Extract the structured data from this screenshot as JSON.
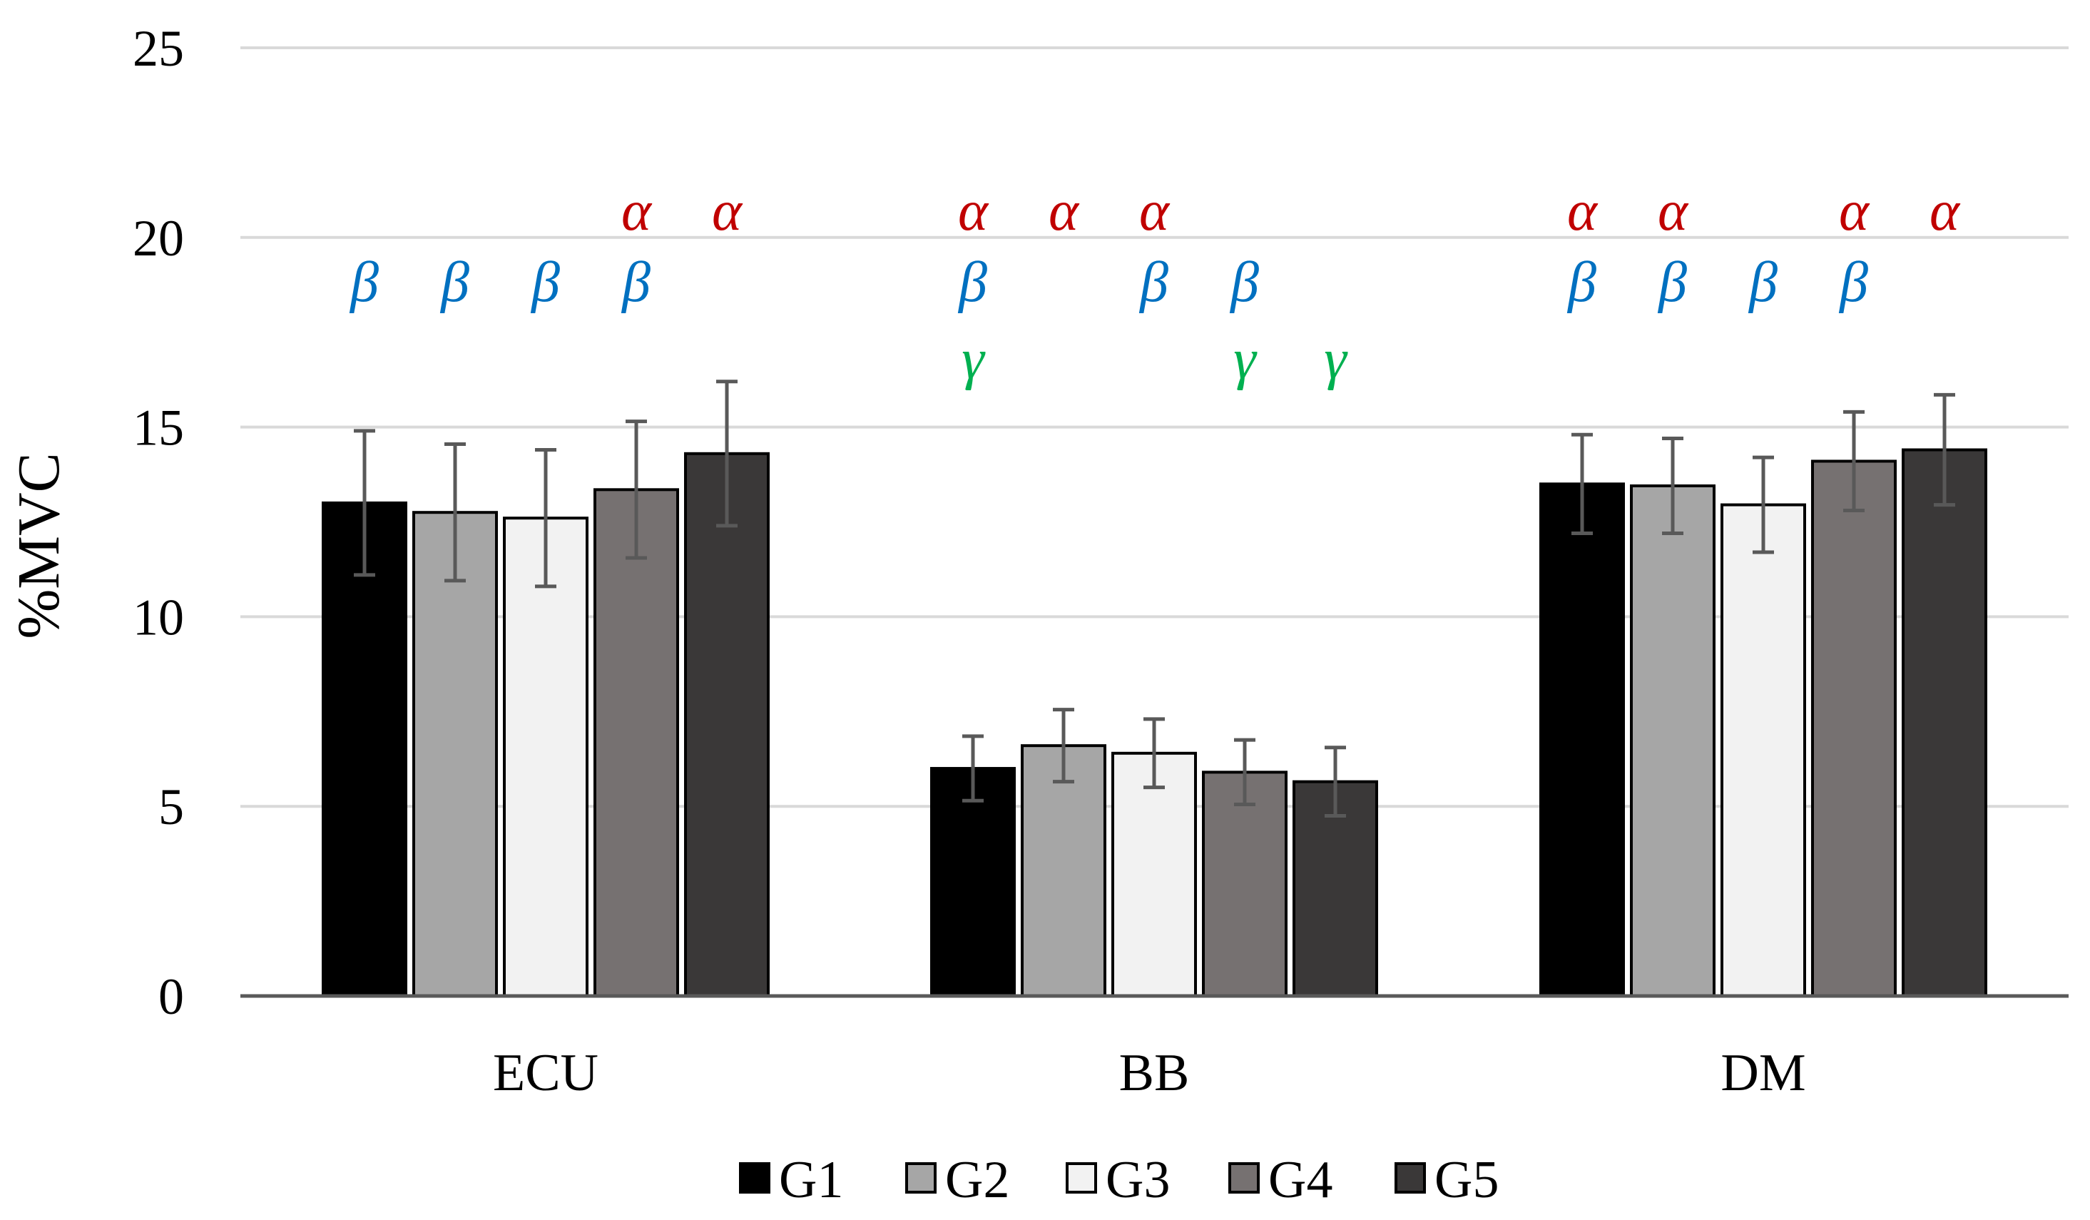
{
  "chart_data": {
    "type": "bar",
    "title": "",
    "xlabel": "",
    "ylabel": "%MVC",
    "ylim": [
      0,
      25
    ],
    "yticks": [
      0,
      5,
      10,
      15,
      20,
      25
    ],
    "grid": true,
    "legend_position": "bottom",
    "categories": [
      "ECU",
      "BB",
      "DM"
    ],
    "series": [
      {
        "name": "G1",
        "color": "#000000",
        "values": [
          13.0,
          6.0,
          13.5
        ],
        "errors": [
          1.9,
          0.85,
          1.3
        ]
      },
      {
        "name": "G2",
        "color": "#a6a6a6",
        "values": [
          12.75,
          6.6,
          13.45
        ],
        "errors": [
          1.8,
          0.95,
          1.25
        ]
      },
      {
        "name": "G3",
        "color": "#f2f2f2",
        "values": [
          12.6,
          6.4,
          12.95
        ],
        "errors": [
          1.8,
          0.9,
          1.25
        ]
      },
      {
        "name": "G4",
        "color": "#767171",
        "values": [
          13.35,
          5.9,
          14.1
        ],
        "errors": [
          1.8,
          0.85,
          1.3
        ]
      },
      {
        "name": "G5",
        "color": "#3a3838",
        "values": [
          14.3,
          5.65,
          14.4
        ],
        "errors": [
          1.9,
          0.9,
          1.45
        ]
      }
    ],
    "significance": {
      "symbols": [
        {
          "name": "alpha",
          "glyph": "α",
          "color": "#c00000"
        },
        {
          "name": "beta",
          "glyph": "β",
          "color": "#0070c0"
        },
        {
          "name": "gamma",
          "glyph": "γ",
          "color": "#00b050"
        }
      ],
      "marks": [
        [
          [
            "beta"
          ],
          [
            "beta"
          ],
          [
            "beta"
          ],
          [
            "alpha",
            "beta"
          ],
          [
            "alpha"
          ]
        ],
        [
          [
            "alpha",
            "beta",
            "gamma"
          ],
          [
            "alpha"
          ],
          [
            "alpha",
            "beta"
          ],
          [
            "beta",
            "gamma"
          ],
          [
            "gamma"
          ]
        ],
        [
          [
            "alpha",
            "beta"
          ],
          [
            "alpha",
            "beta"
          ],
          [
            "beta"
          ],
          [
            "alpha",
            "beta"
          ],
          [
            "alpha"
          ]
        ]
      ]
    }
  }
}
